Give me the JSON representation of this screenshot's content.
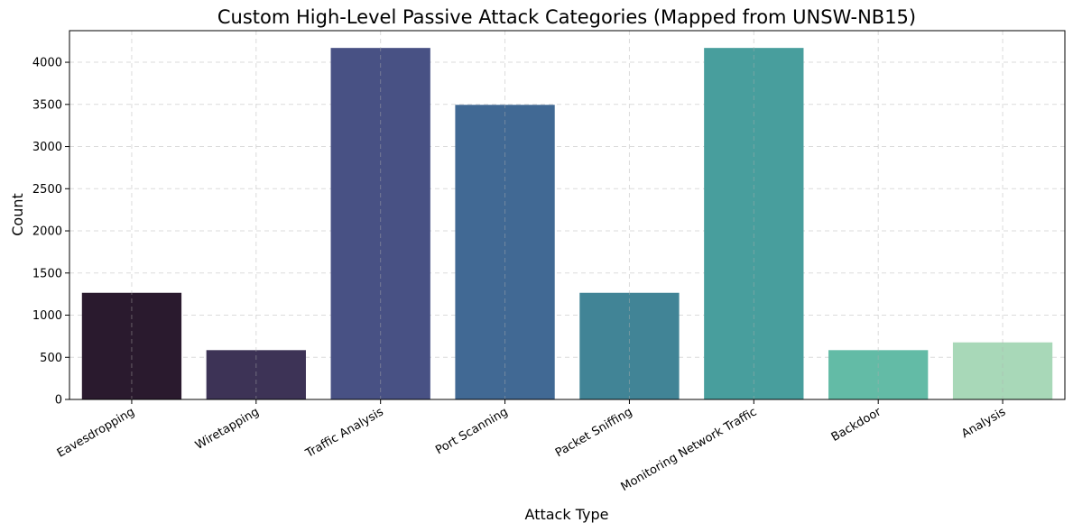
{
  "chart_data": {
    "type": "bar",
    "title": "Custom High-Level Passive Attack Categories (Mapped from UNSW-NB15)",
    "xlabel": "Attack Type",
    "ylabel": "Count",
    "categories": [
      "Eavesdropping",
      "Wiretapping",
      "Traffic Analysis",
      "Port Scanning",
      "Packet Sniffing",
      "Monitoring Network Traffic",
      "Backdoor",
      "Analysis"
    ],
    "values": [
      1265,
      585,
      4170,
      3495,
      1265,
      4170,
      585,
      677
    ],
    "colors": [
      "#2a1a2e",
      "#3d3356",
      "#485184",
      "#416994",
      "#418496",
      "#489e9d",
      "#63bba6",
      "#a8d8b8"
    ],
    "ylim": [
      0,
      4375
    ],
    "yticks": [
      0,
      500,
      1000,
      1500,
      2000,
      2500,
      3000,
      3500,
      4000
    ],
    "grid": true
  }
}
